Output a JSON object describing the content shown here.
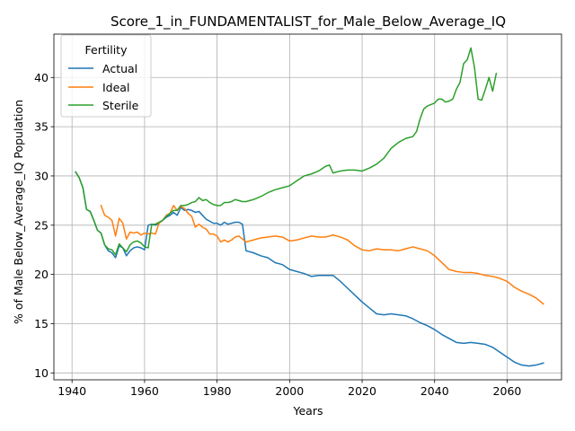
{
  "chart_data": {
    "type": "line",
    "title": "Score_1_in_FUNDAMENTALIST_for_Male_Below_Average_IQ",
    "xlabel": "Years",
    "ylabel": "% of Male Below_Average_IQ Population",
    "xlim": [
      1935,
      2075
    ],
    "ylim": [
      9.3,
      44.4
    ],
    "x_ticks": [
      1940,
      1960,
      1980,
      2000,
      2020,
      2040,
      2060
    ],
    "y_ticks": [
      10,
      15,
      20,
      25,
      30,
      35,
      40
    ],
    "grid": true,
    "legend": {
      "title": "Fertility",
      "placement": "top-left"
    },
    "series": [
      {
        "name": "Actual",
        "color": "#1f77b4",
        "points": [
          [
            1941,
            30.4
          ],
          [
            1942,
            29.8
          ],
          [
            1943,
            28.8
          ],
          [
            1944,
            26.6
          ],
          [
            1945,
            26.4
          ],
          [
            1946,
            25.5
          ],
          [
            1947,
            24.5
          ],
          [
            1948,
            24.2
          ],
          [
            1949,
            23.0
          ],
          [
            1950,
            22.4
          ],
          [
            1951,
            22.2
          ],
          [
            1952,
            21.7
          ],
          [
            1953,
            22.9
          ],
          [
            1954,
            22.7
          ],
          [
            1955,
            21.9
          ],
          [
            1956,
            22.4
          ],
          [
            1957,
            22.7
          ],
          [
            1958,
            22.8
          ],
          [
            1959,
            22.7
          ],
          [
            1960,
            22.5
          ],
          [
            1961,
            25.0
          ],
          [
            1962,
            25.1
          ],
          [
            1963,
            25.0
          ],
          [
            1964,
            25.2
          ],
          [
            1965,
            25.5
          ],
          [
            1966,
            25.8
          ],
          [
            1967,
            26.0
          ],
          [
            1968,
            26.3
          ],
          [
            1969,
            26.0
          ],
          [
            1970,
            26.8
          ],
          [
            1971,
            26.5
          ],
          [
            1972,
            26.6
          ],
          [
            1973,
            26.5
          ],
          [
            1974,
            26.3
          ],
          [
            1975,
            26.4
          ],
          [
            1976,
            26.0
          ],
          [
            1977,
            25.6
          ],
          [
            1978,
            25.4
          ],
          [
            1979,
            25.2
          ],
          [
            1980,
            25.2
          ],
          [
            1981,
            25.0
          ],
          [
            1982,
            25.3
          ],
          [
            1983,
            25.1
          ],
          [
            1984,
            25.2
          ],
          [
            1985,
            25.3
          ],
          [
            1986,
            25.3
          ],
          [
            1987,
            25.1
          ],
          [
            1988,
            22.4
          ],
          [
            1990,
            22.2
          ],
          [
            1992,
            21.9
          ],
          [
            1994,
            21.7
          ],
          [
            1996,
            21.2
          ],
          [
            1998,
            21.0
          ],
          [
            2000,
            20.5
          ],
          [
            2002,
            20.3
          ],
          [
            2004,
            20.1
          ],
          [
            2006,
            19.8
          ],
          [
            2008,
            19.9
          ],
          [
            2010,
            19.9
          ],
          [
            2012,
            19.9
          ],
          [
            2014,
            19.3
          ],
          [
            2016,
            18.6
          ],
          [
            2018,
            17.9
          ],
          [
            2020,
            17.2
          ],
          [
            2022,
            16.6
          ],
          [
            2024,
            16.0
          ],
          [
            2026,
            15.9
          ],
          [
            2028,
            16.0
          ],
          [
            2030,
            15.9
          ],
          [
            2032,
            15.8
          ],
          [
            2034,
            15.5
          ],
          [
            2036,
            15.1
          ],
          [
            2038,
            14.8
          ],
          [
            2040,
            14.4
          ],
          [
            2042,
            13.9
          ],
          [
            2044,
            13.5
          ],
          [
            2046,
            13.1
          ],
          [
            2048,
            13.0
          ],
          [
            2050,
            13.1
          ],
          [
            2052,
            13.0
          ],
          [
            2054,
            12.9
          ],
          [
            2056,
            12.6
          ],
          [
            2058,
            12.1
          ],
          [
            2060,
            11.6
          ],
          [
            2062,
            11.1
          ],
          [
            2064,
            10.8
          ],
          [
            2066,
            10.7
          ],
          [
            2068,
            10.8
          ],
          [
            2070,
            11.0
          ]
        ]
      },
      {
        "name": "Ideal",
        "color": "#ff7f0e",
        "points": [
          [
            1948,
            27.0
          ],
          [
            1949,
            26.0
          ],
          [
            1950,
            25.8
          ],
          [
            1951,
            25.5
          ],
          [
            1952,
            23.9
          ],
          [
            1953,
            25.7
          ],
          [
            1954,
            25.2
          ],
          [
            1955,
            23.6
          ],
          [
            1956,
            24.3
          ],
          [
            1957,
            24.2
          ],
          [
            1958,
            24.3
          ],
          [
            1959,
            24.0
          ],
          [
            1960,
            24.2
          ],
          [
            1961,
            24.1
          ],
          [
            1962,
            24.2
          ],
          [
            1963,
            24.1
          ],
          [
            1964,
            25.2
          ],
          [
            1965,
            25.5
          ],
          [
            1966,
            26.0
          ],
          [
            1967,
            26.2
          ],
          [
            1968,
            27.0
          ],
          [
            1969,
            26.5
          ],
          [
            1970,
            26.9
          ],
          [
            1971,
            26.7
          ],
          [
            1972,
            26.2
          ],
          [
            1973,
            25.9
          ],
          [
            1974,
            24.8
          ],
          [
            1975,
            25.1
          ],
          [
            1976,
            24.8
          ],
          [
            1977,
            24.6
          ],
          [
            1978,
            24.1
          ],
          [
            1979,
            24.1
          ],
          [
            1980,
            23.9
          ],
          [
            1981,
            23.3
          ],
          [
            1982,
            23.5
          ],
          [
            1983,
            23.3
          ],
          [
            1984,
            23.5
          ],
          [
            1985,
            23.8
          ],
          [
            1986,
            23.9
          ],
          [
            1987,
            23.6
          ],
          [
            1988,
            23.3
          ],
          [
            1990,
            23.5
          ],
          [
            1992,
            23.7
          ],
          [
            1994,
            23.8
          ],
          [
            1996,
            23.9
          ],
          [
            1998,
            23.8
          ],
          [
            2000,
            23.4
          ],
          [
            2002,
            23.5
          ],
          [
            2004,
            23.7
          ],
          [
            2006,
            23.9
          ],
          [
            2008,
            23.8
          ],
          [
            2010,
            23.8
          ],
          [
            2012,
            24.0
          ],
          [
            2014,
            23.8
          ],
          [
            2016,
            23.5
          ],
          [
            2018,
            22.9
          ],
          [
            2020,
            22.5
          ],
          [
            2022,
            22.4
          ],
          [
            2024,
            22.6
          ],
          [
            2026,
            22.5
          ],
          [
            2028,
            22.5
          ],
          [
            2030,
            22.4
          ],
          [
            2032,
            22.6
          ],
          [
            2034,
            22.8
          ],
          [
            2036,
            22.6
          ],
          [
            2038,
            22.4
          ],
          [
            2040,
            21.9
          ],
          [
            2042,
            21.2
          ],
          [
            2044,
            20.5
          ],
          [
            2046,
            20.3
          ],
          [
            2048,
            20.2
          ],
          [
            2050,
            20.2
          ],
          [
            2052,
            20.1
          ],
          [
            2054,
            19.9
          ],
          [
            2056,
            19.8
          ],
          [
            2058,
            19.6
          ],
          [
            2060,
            19.3
          ],
          [
            2062,
            18.7
          ],
          [
            2064,
            18.3
          ],
          [
            2066,
            18.0
          ],
          [
            2068,
            17.6
          ],
          [
            2070,
            17.0
          ]
        ]
      },
      {
        "name": "Sterile",
        "color": "#2ca02c",
        "points": [
          [
            1941,
            30.4
          ],
          [
            1942,
            29.8
          ],
          [
            1943,
            28.8
          ],
          [
            1944,
            26.6
          ],
          [
            1945,
            26.4
          ],
          [
            1946,
            25.5
          ],
          [
            1947,
            24.5
          ],
          [
            1948,
            24.2
          ],
          [
            1949,
            23.0
          ],
          [
            1950,
            22.6
          ],
          [
            1951,
            22.5
          ],
          [
            1952,
            22.0
          ],
          [
            1953,
            23.1
          ],
          [
            1954,
            22.7
          ],
          [
            1955,
            22.3
          ],
          [
            1956,
            23.0
          ],
          [
            1957,
            23.3
          ],
          [
            1958,
            23.4
          ],
          [
            1959,
            23.2
          ],
          [
            1960,
            22.8
          ],
          [
            1961,
            22.7
          ],
          [
            1962,
            25.1
          ],
          [
            1963,
            25.1
          ],
          [
            1964,
            25.3
          ],
          [
            1965,
            25.5
          ],
          [
            1966,
            25.9
          ],
          [
            1967,
            26.2
          ],
          [
            1968,
            26.5
          ],
          [
            1969,
            26.5
          ],
          [
            1970,
            27.0
          ],
          [
            1971,
            27.0
          ],
          [
            1972,
            27.1
          ],
          [
            1973,
            27.3
          ],
          [
            1974,
            27.4
          ],
          [
            1975,
            27.8
          ],
          [
            1976,
            27.5
          ],
          [
            1977,
            27.6
          ],
          [
            1978,
            27.3
          ],
          [
            1979,
            27.1
          ],
          [
            1980,
            27.0
          ],
          [
            1981,
            27.0
          ],
          [
            1982,
            27.3
          ],
          [
            1983,
            27.3
          ],
          [
            1984,
            27.4
          ],
          [
            1985,
            27.6
          ],
          [
            1986,
            27.5
          ],
          [
            1987,
            27.4
          ],
          [
            1988,
            27.4
          ],
          [
            1990,
            27.6
          ],
          [
            1992,
            27.9
          ],
          [
            1994,
            28.3
          ],
          [
            1996,
            28.6
          ],
          [
            1998,
            28.8
          ],
          [
            2000,
            29.0
          ],
          [
            2002,
            29.5
          ],
          [
            2004,
            30.0
          ],
          [
            2006,
            30.2
          ],
          [
            2008,
            30.5
          ],
          [
            2010,
            31.0
          ],
          [
            2011,
            31.1
          ],
          [
            2012,
            30.3
          ],
          [
            2014,
            30.5
          ],
          [
            2016,
            30.6
          ],
          [
            2018,
            30.6
          ],
          [
            2020,
            30.5
          ],
          [
            2022,
            30.8
          ],
          [
            2024,
            31.2
          ],
          [
            2026,
            31.8
          ],
          [
            2028,
            32.8
          ],
          [
            2030,
            33.4
          ],
          [
            2032,
            33.8
          ],
          [
            2034,
            34.0
          ],
          [
            2035,
            34.5
          ],
          [
            2036,
            35.8
          ],
          [
            2037,
            36.8
          ],
          [
            2038,
            37.1
          ],
          [
            2040,
            37.4
          ],
          [
            2041,
            37.8
          ],
          [
            2042,
            37.8
          ],
          [
            2043,
            37.5
          ],
          [
            2044,
            37.6
          ],
          [
            2045,
            37.8
          ],
          [
            2046,
            38.8
          ],
          [
            2047,
            39.5
          ],
          [
            2048,
            41.4
          ],
          [
            2049,
            41.8
          ],
          [
            2050,
            43.0
          ],
          [
            2051,
            41.0
          ],
          [
            2052,
            37.8
          ],
          [
            2053,
            37.7
          ],
          [
            2054,
            38.8
          ],
          [
            2055,
            40.0
          ],
          [
            2056,
            38.6
          ],
          [
            2057,
            40.4
          ]
        ]
      }
    ]
  }
}
